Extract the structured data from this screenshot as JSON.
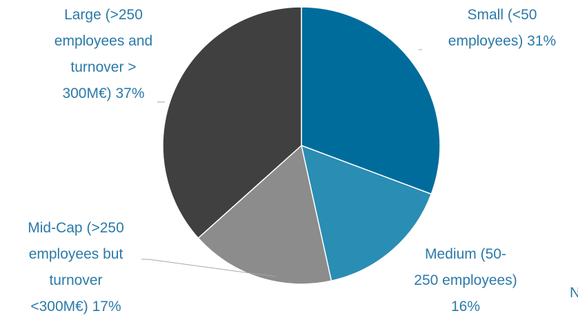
{
  "chart_data": {
    "type": "pie",
    "labels": [
      "Small (<50\nemployees) 31%",
      "Medium (50-\n250 employees)\n16%",
      "Mid-Cap (>250\nemployees but\nturnover\n<300M€) 17%",
      "Large (>250\nemployees and\nturnover >\n300M€) 37%"
    ],
    "values": [
      31,
      16,
      17,
      37
    ],
    "colors": [
      "#006c9c",
      "#2a8db3",
      "#8c8c8c",
      "#404040"
    ],
    "annotation": "N"
  }
}
